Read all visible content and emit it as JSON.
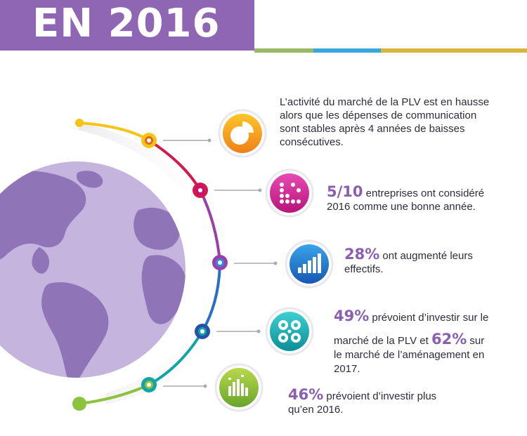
{
  "header": {
    "title": "EN 2016"
  },
  "colors": {
    "purple": "#8e66b3",
    "globe": "#c5b4de",
    "land": "#8f74b8"
  },
  "icons": [
    "pie-chart-icon",
    "dot-matrix-icon",
    "bar-chart-icon",
    "circles-icon",
    "equalizer-icon"
  ],
  "items": [
    {
      "line1": "L’activité du marché de la PLV est en hausse",
      "line2": "alors que les dépenses de communication",
      "line3": "sont stables après 4 années de baisses",
      "line4": "consécutives."
    },
    {
      "num": "5/10",
      "line1": " entreprises ont considéré",
      "line2": "2016 comme une bonne année."
    },
    {
      "num": "28%",
      "line1": " ont augmenté leurs",
      "line2": "effectifs."
    },
    {
      "num1": "49%",
      "line1": " prévoient d’investir sur le",
      "line2a": "marché de la PLV et ",
      "num2": "62%",
      "line2b": " sur",
      "line3": "le marché de l’aménagement en",
      "line4": "2017."
    },
    {
      "num": "46%",
      "line1": " prévoient d’investir plus",
      "line2": "qu’en 2016."
    }
  ]
}
